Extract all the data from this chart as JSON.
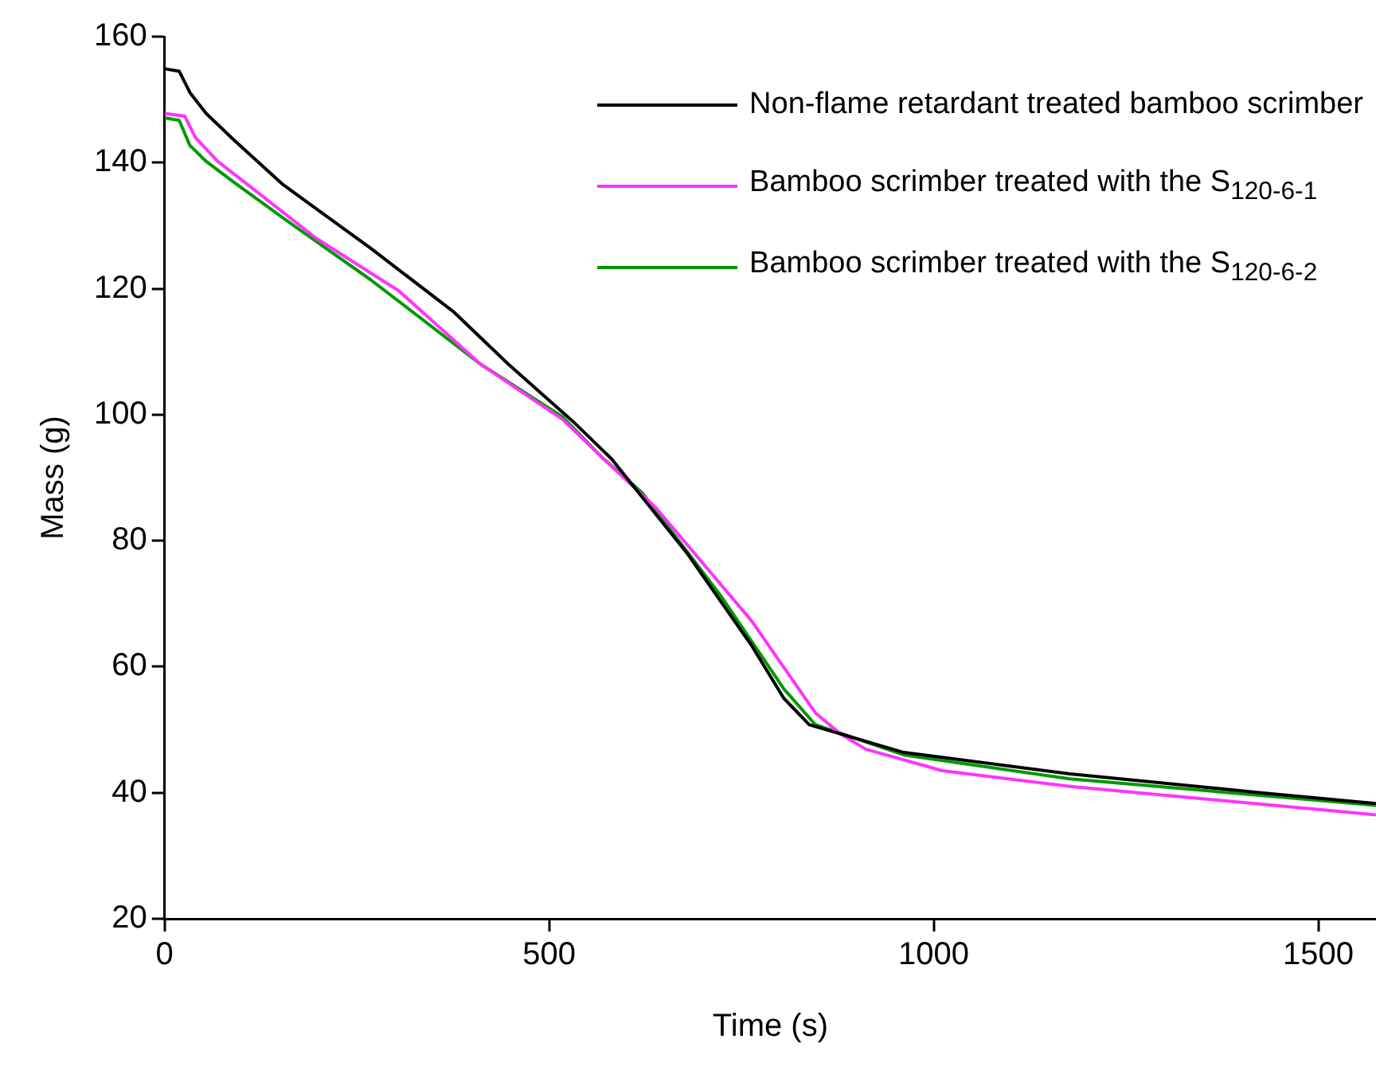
{
  "chart_data": {
    "type": "line",
    "xlabel": "Time (s)",
    "ylabel": "Mass (g)",
    "xlim": [
      0,
      1575
    ],
    "ylim": [
      20,
      160
    ],
    "xticks": [
      0,
      500,
      1000,
      1500
    ],
    "yticks": [
      20,
      40,
      60,
      80,
      100,
      120,
      140,
      160
    ],
    "grid": false,
    "legend": "top right",
    "marker": "none",
    "line_style": "solid",
    "series": [
      {
        "name": "Non-flame retardant treated bamboo scrimber",
        "color": "#000000",
        "x": [
          0,
          19,
          33,
          54,
          90,
          154,
          268,
          375,
          447,
          532,
          581,
          680,
          763,
          805,
          838,
          961,
          1177,
          1425,
          1575
        ],
        "values": [
          154.9,
          154.5,
          151.1,
          147.8,
          143.6,
          136.5,
          126.4,
          116.4,
          108,
          98.8,
          93,
          77.9,
          63.4,
          55,
          50.8,
          46.4,
          43,
          40,
          38.3
        ]
      },
      {
        "name": "Bamboo scrimber treated with the S$_{120-6-1}$",
        "color": "#ff33ff",
        "x": [
          0,
          26,
          40,
          69,
          126,
          197,
          304,
          411,
          518,
          568,
          639,
          763,
          846,
          879,
          912,
          1011,
          1177,
          1575
        ],
        "values": [
          147.8,
          147.4,
          144,
          140.2,
          134.8,
          128,
          119.7,
          108,
          99.2,
          93.3,
          85.2,
          67.3,
          52.7,
          49.3,
          46.9,
          43.5,
          41,
          36.5
        ]
      },
      {
        "name": "Bamboo scrimber treated with the S$_{120-6-2}$",
        "color": "#009900",
        "x": [
          0,
          19,
          33,
          54,
          90,
          161,
          268,
          411,
          518,
          568,
          621,
          724,
          805,
          846,
          961,
          1177,
          1575
        ],
        "values": [
          147.1,
          146.7,
          142.7,
          140.2,
          136.9,
          130.6,
          121.4,
          108,
          99.6,
          93.3,
          87.6,
          71.1,
          56.5,
          50.8,
          46,
          42.2,
          38
        ]
      }
    ]
  }
}
